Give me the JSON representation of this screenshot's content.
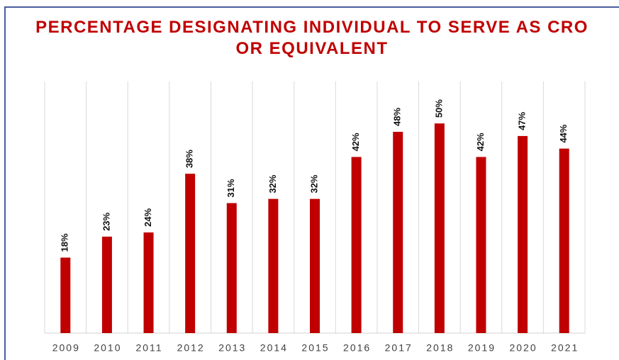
{
  "chart_data": {
    "type": "bar",
    "title": "PERCENTAGE DESIGNATING INDIVIDUAL TO SERVE AS CRO OR EQUIVALENT",
    "categories": [
      "2009",
      "2010",
      "2011",
      "2012",
      "2013",
      "2014",
      "2015",
      "2016",
      "2017",
      "2018",
      "2019",
      "2020",
      "2021"
    ],
    "values": [
      18,
      23,
      24,
      38,
      31,
      32,
      32,
      42,
      48,
      50,
      42,
      47,
      44
    ],
    "value_labels": [
      "18%",
      "23%",
      "24%",
      "38%",
      "31%",
      "32%",
      "32%",
      "42%",
      "48%",
      "50%",
      "42%",
      "47%",
      "44%"
    ],
    "color": "#c00000",
    "ylim": [
      0,
      60
    ]
  }
}
